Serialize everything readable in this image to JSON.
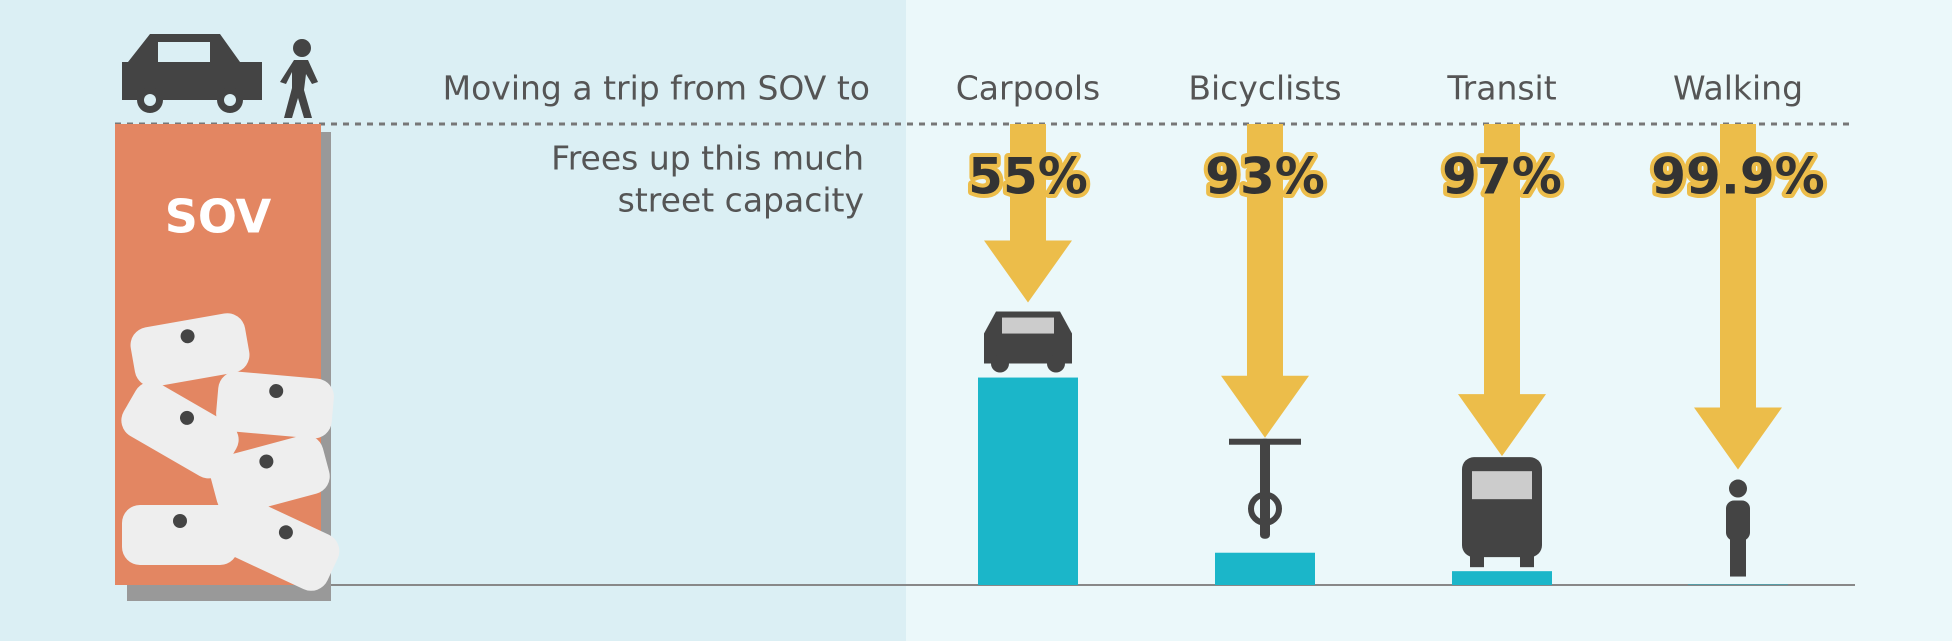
{
  "chart_data": {
    "type": "bar",
    "title": "Moving a trip from SOV to",
    "subtitle_lines": [
      "Frees up this much",
      "street capacity"
    ],
    "sov_label": "SOV",
    "categories": [
      "Carpools",
      "Bicyclists",
      "Transit",
      "Walking"
    ],
    "values": [
      55,
      93,
      97,
      99.9
    ],
    "value_labels": [
      "55%",
      "93%",
      "97%",
      "99.9%"
    ],
    "ylim": [
      0,
      100
    ],
    "color": "#1bb6c9",
    "arrow_color": "#ecbd4a",
    "sov_color": "#e38662"
  }
}
